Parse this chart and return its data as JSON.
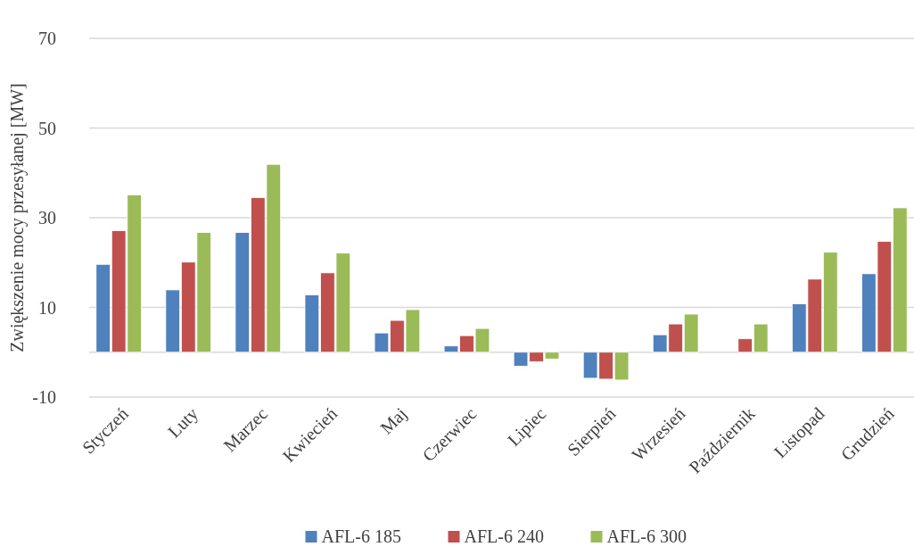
{
  "chart_data": {
    "type": "bar",
    "ylabel": "Zwiększenie mocy przesyłanej  [MW]",
    "categories": [
      "Styczeń",
      "Luty",
      "Marzec",
      "Kwiecień",
      "Maj",
      "Czerwiec",
      "Lipiec",
      "Sierpień",
      "Wrzesień",
      "Październik",
      "Listopad",
      "Grudzień"
    ],
    "series": [
      {
        "name": "AFL-6 185",
        "color": "#4f81bd",
        "values": [
          19.6,
          13.9,
          26.7,
          12.8,
          4.3,
          1.4,
          -3.1,
          -5.8,
          3.9,
          null,
          10.8,
          17.5
        ]
      },
      {
        "name": "AFL-6 240",
        "color": "#c0504d",
        "values": [
          27.1,
          20.1,
          34.5,
          17.7,
          7.1,
          3.7,
          -2.1,
          -6.0,
          6.3,
          3.0,
          16.3,
          24.7
        ]
      },
      {
        "name": "AFL-6 300",
        "color": "#9bbb59",
        "values": [
          35.1,
          26.7,
          41.9,
          22.1,
          9.5,
          5.3,
          -1.5,
          -6.2,
          8.5,
          6.3,
          22.3,
          32.2
        ]
      }
    ],
    "ylim": [
      -10,
      70
    ],
    "yticks": [
      -10,
      10,
      30,
      50,
      70
    ],
    "grid": "y",
    "legend": "bottom"
  }
}
